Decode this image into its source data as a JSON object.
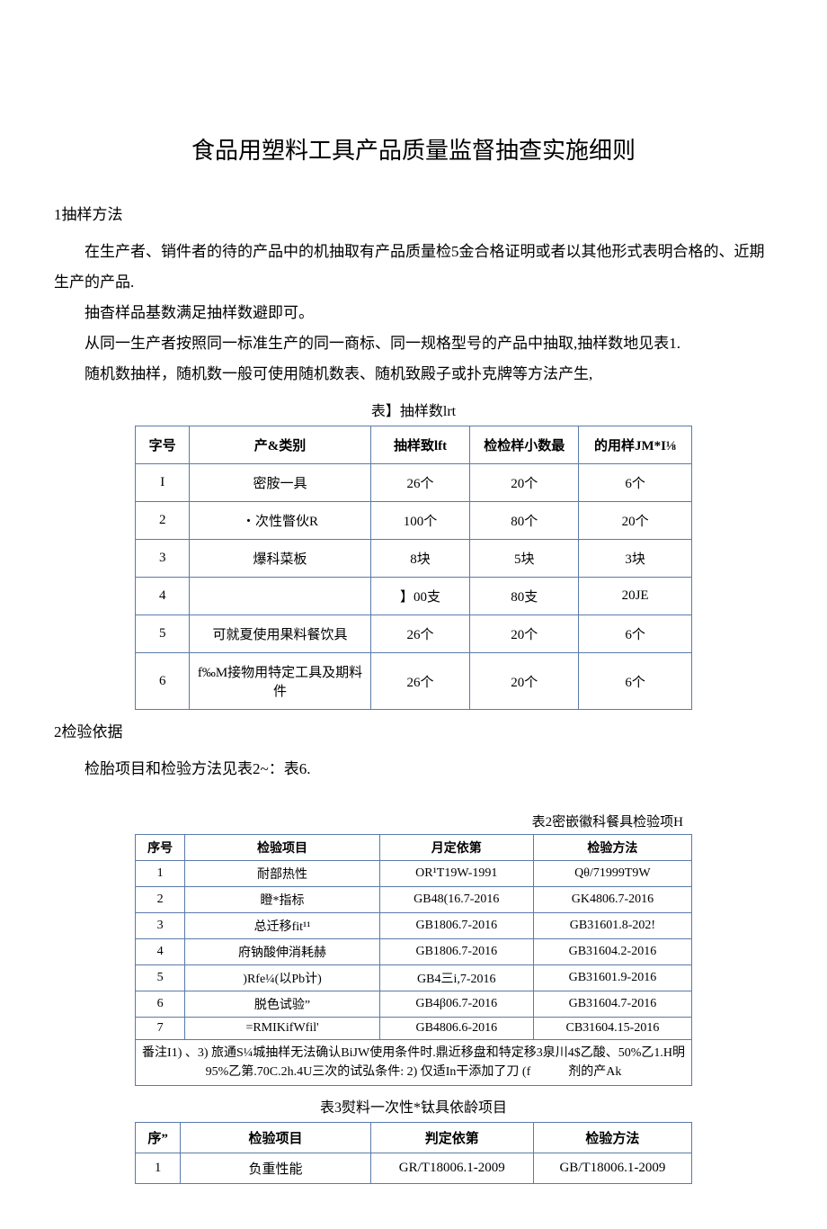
{
  "title": "食品用塑料工具产品质量监督抽查实施细则",
  "section1": {
    "head": "1抽样方法",
    "p1": "在生产者、销件者的待的产品中的机抽取有产品质量检5金合格证明或者以其他形式表明合格的、近期生产的产品.",
    "p2": "抽杳样品基数满足抽样数避即可。",
    "p3": "从同一生产者按照同一标准生产的同一商标、同一规格型号的产品中抽取,抽样数地见表1.",
    "p4": "随机数抽样，随机数一般可使用随机数表、随机致殿子或扑克牌等方法产生,"
  },
  "table1": {
    "caption": "表】抽样数lrt",
    "headers": [
      "字号",
      "产&类别",
      "抽样致lft",
      "检检样小数最",
      "的用样JM*I⅛"
    ],
    "rows": [
      [
        "I",
        "密胺一具",
        "26个",
        "20个",
        "6个"
      ],
      [
        "2",
        "・次性瞥伙R",
        "100个",
        "80个",
        "20个"
      ],
      [
        "3",
        "爆科菜板",
        "8块",
        "5块",
        "3块"
      ],
      [
        "4",
        "",
        "】00支",
        "80支",
        "20JE"
      ],
      [
        "5",
        "可就夏使用果料餐饮具",
        "26个",
        "20个",
        "6个"
      ],
      [
        "6",
        "f‰M接物用特定工具及期料件",
        "26个",
        "20个",
        "6个"
      ]
    ],
    "col_widths": [
      "60px",
      "200px",
      "110px",
      "120px",
      "125px"
    ]
  },
  "section2": {
    "head": "2检验依据",
    "p1": "检胎项目和检验方法见表2~：表6."
  },
  "table2": {
    "caption": "表2密嵌徽科餐具检验项H",
    "headers": [
      "序号",
      "检验项目",
      "月定依第",
      "检验方法"
    ],
    "rows": [
      [
        "1",
        "耐部热性",
        "OR¹T19W-1991",
        "Qθ/71999T9W"
      ],
      [
        "2",
        "瞪*指标",
        "GB48(16.7-2016",
        "GK4806.7-2016"
      ],
      [
        "3",
        "总迁移fit¹¹",
        "GB1806.7-2016",
        "GB31601.8-202!"
      ],
      [
        "4",
        "府钠酸伸消耗赫",
        "GB1806.7-2016",
        "GB31604.2-2016"
      ],
      [
        "5",
        ")Rfe¼(以Pb计)",
        "GB4三i,7-2016",
        "GB31601.9-2016"
      ],
      [
        "6",
        "脱色试验”",
        "GB4β06.7-2016",
        "GB31604.7-2016"
      ],
      [
        "7",
        "=RMIKifWfil'",
        "GB4806.6-2016",
        "CB31604.15-2016"
      ]
    ],
    "footnote": "番注I1) 、3) 旅通S¼城抽样无法确认BiJW使用条件时.鼎近移盘和特定移3泉川4$乙酸、50%乙1.H明95%乙第.70C.2h.4U三次的试弘条件: 2) 仅适In干添加了刀 (f　　　剂的产Ak",
    "col_widths": [
      "55px",
      "215px",
      "170px",
      "175px"
    ]
  },
  "table3": {
    "caption": "表3熨料一次性*钛具依龄项目",
    "headers": [
      "序”",
      "检验项目",
      "判定依第",
      "检验方法"
    ],
    "rows": [
      [
        "1",
        "负重性能",
        "GR/T18006.1-2009",
        "GB/T18006.1-2009"
      ]
    ],
    "col_widths": [
      "50px",
      "210px",
      "180px",
      "175px"
    ]
  },
  "colors": {
    "border": "#5a7aa8",
    "text": "#000000",
    "bg": "#ffffff"
  }
}
